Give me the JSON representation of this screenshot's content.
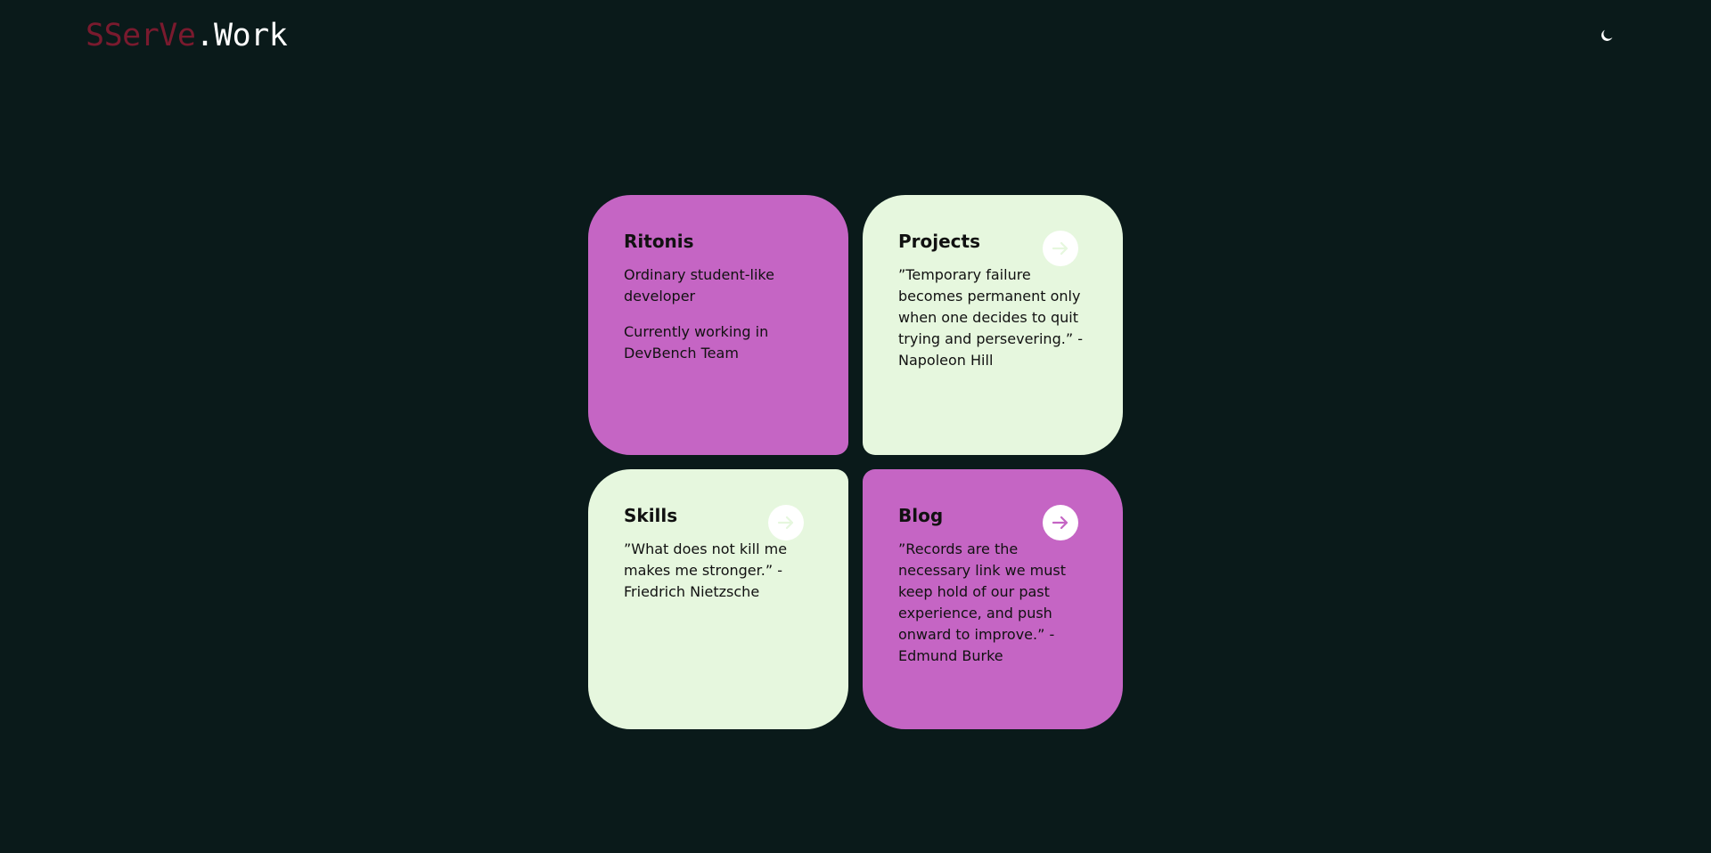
{
  "header": {
    "logo_part1": "SSerVe",
    "logo_part2": ".Work",
    "theme_icon": "moon-icon"
  },
  "colors": {
    "background": "#0a1a1a",
    "magenta": "#c565c4",
    "mint": "#e6f7de",
    "logo_accent": "#7a1a2e"
  },
  "cards": [
    {
      "title": "Ritonis",
      "lines": [
        "Ordinary student-like developer",
        "Currently working in DevBench Team"
      ]
    },
    {
      "title": "Projects",
      "lines": [
        "”Temporary failure becomes permanent only when one decides to quit trying and persevering.” - Napoleon Hill"
      ]
    },
    {
      "title": "Skills",
      "lines": [
        "”What does not kill me makes me stronger.” - Friedrich Nietzsche"
      ]
    },
    {
      "title": "Blog",
      "lines": [
        "”Records are the necessary link we must keep hold of our past experience, and push onward to improve.” - Edmund Burke"
      ]
    }
  ]
}
